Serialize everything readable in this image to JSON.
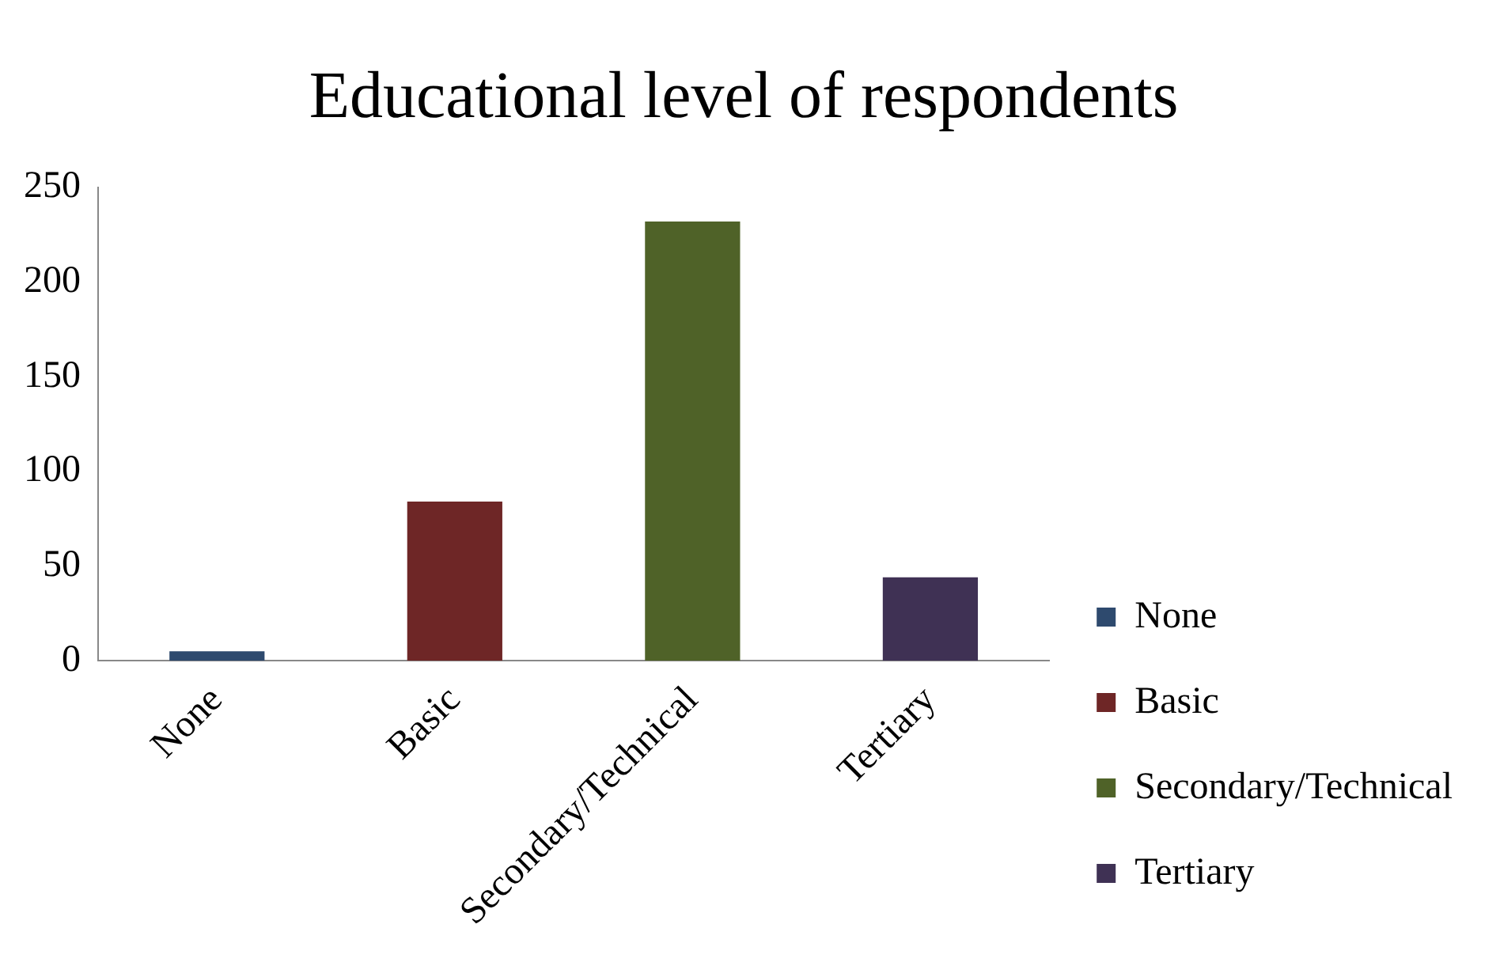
{
  "chart_data": {
    "type": "bar",
    "title": "Educational level of respondents",
    "categories": [
      "None",
      "Basic",
      "Secondary/Technical",
      "Tertiary"
    ],
    "series": [
      {
        "name": "None",
        "color": "#2e4a6e",
        "values": [
          5,
          null,
          null,
          null
        ]
      },
      {
        "name": "Basic",
        "color": "#6e2626",
        "values": [
          null,
          84,
          null,
          null
        ]
      },
      {
        "name": "Secondary/Technical",
        "color": "#4f6228",
        "values": [
          null,
          null,
          232,
          null
        ]
      },
      {
        "name": "Tertiary",
        "color": "#3f3154",
        "values": [
          null,
          null,
          null,
          44
        ]
      }
    ],
    "ylim": [
      0,
      250
    ],
    "yticks": [
      0,
      50,
      100,
      150,
      200,
      250
    ],
    "grid": false,
    "legend": "right"
  }
}
